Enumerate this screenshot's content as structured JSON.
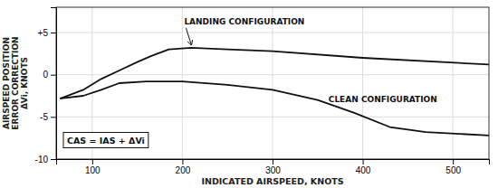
{
  "chart_data": {
    "type": "line",
    "xlabel": "INDICATED AIRSPEED, KNOTS",
    "ylabel": "AIRSPEED POSITION\nERROR CORRECTION\nΔVi, KNOTS",
    "xlim": [
      60,
      540
    ],
    "ylim": [
      -10,
      8
    ],
    "xticks": [
      100,
      200,
      300,
      400,
      500
    ],
    "yticks": [
      -10,
      -5,
      0,
      {
        "value": 5,
        "label": "+5"
      }
    ],
    "grid": true,
    "series": [
      {
        "name": "LANDING CONFIGURATION",
        "color": "#111111",
        "x": [
          65,
          90,
          110,
          130,
          150,
          165,
          185,
          210,
          250,
          300,
          400,
          540
        ],
        "values": [
          -2.8,
          -1.8,
          -0.5,
          0.5,
          1.5,
          2.2,
          3.0,
          3.2,
          3.0,
          2.8,
          2.0,
          1.2
        ]
      },
      {
        "name": "CLEAN CONFIGURATION",
        "color": "#111111",
        "x": [
          65,
          90,
          110,
          130,
          160,
          200,
          250,
          300,
          350,
          390,
          430,
          470,
          540
        ],
        "values": [
          -2.8,
          -2.5,
          -1.8,
          -1.0,
          -0.8,
          -0.8,
          -1.2,
          -1.8,
          -3.0,
          -4.5,
          -6.2,
          -6.8,
          -7.2
        ]
      }
    ],
    "annotation": "CAS = IAS + ΔVi"
  }
}
